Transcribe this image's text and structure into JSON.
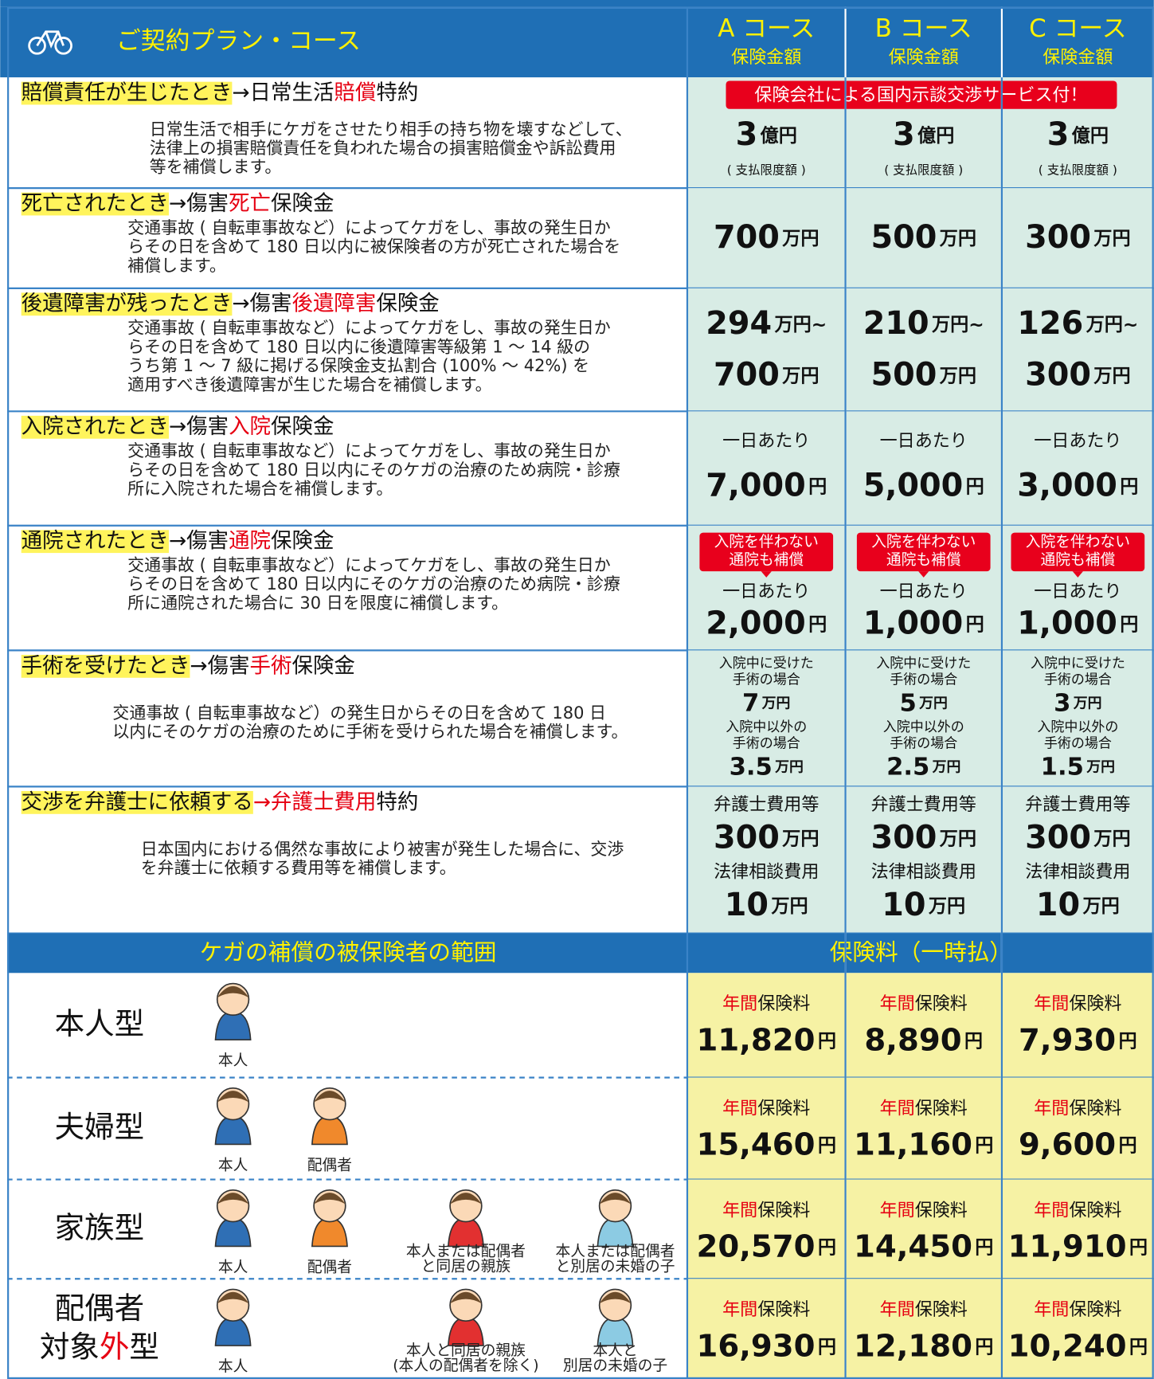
{
  "header": {
    "title": "ご契約プラン・コース",
    "courses": [
      {
        "name": "A コース",
        "sub": "保険金額"
      },
      {
        "name": "B コース",
        "sub": "保険金額"
      },
      {
        "name": "C コース",
        "sub": "保険金額"
      }
    ]
  },
  "benefits": [
    {
      "heading": [
        {
          "text": "賠償責任が生じたとき",
          "highlight": "#fff45c"
        },
        {
          "text": "→日常生活"
        },
        {
          "text": "賠償",
          "color": "#e60012"
        },
        {
          "text": "特約"
        }
      ],
      "description": [
        "日常生活で相手にケガをさせたり相手の持ち物を壊すなどして、",
        "法律上の損害賠償責任を負われた場合の損害賠償金や訴訟費用",
        "等を補償します。"
      ],
      "banner": "保険会社による国内示談交渉サービス付！",
      "cells": [
        [
          {
            "amount": "3",
            "unit": "億円"
          },
          {
            "note": "( 支払限度額 )"
          }
        ],
        [
          {
            "amount": "3",
            "unit": "億円"
          },
          {
            "note": "( 支払限度額 )"
          }
        ],
        [
          {
            "amount": "3",
            "unit": "億円"
          },
          {
            "note": "( 支払限度額 )"
          }
        ]
      ]
    },
    {
      "heading": [
        {
          "text": "死亡されたとき",
          "highlight": "#fff45c"
        },
        {
          "text": "→傷害"
        },
        {
          "text": "死亡",
          "color": "#e60012"
        },
        {
          "text": "保険金"
        }
      ],
      "description": [
        "交通事故 ( 自転車事故など）によってケガをし、事故の発生日か",
        "らその日を含めて 180 日以内に被保険者の方が死亡された場合を",
        "補償します。"
      ],
      "cells": [
        [
          {
            "amount": "700",
            "unit": "万円"
          }
        ],
        [
          {
            "amount": "500",
            "unit": "万円"
          }
        ],
        [
          {
            "amount": "300",
            "unit": "万円"
          }
        ]
      ]
    },
    {
      "heading": [
        {
          "text": "後遺障害が残ったとき",
          "highlight": "#fff45c"
        },
        {
          "text": "→傷害"
        },
        {
          "text": "後遺障害",
          "color": "#e60012"
        },
        {
          "text": "保険金"
        }
      ],
      "description": [
        "交通事故 ( 自転車事故など）によってケガをし、事故の発生日か",
        "らその日を含めて 180 日以内に後遺障害等級第 1 ～ 14 級の",
        "うち第 1 ～ 7 級に掲げる保険金支払割合 (100% ～ 42%) を",
        "適用すべき後遺障害が生じた場合を補償します。"
      ],
      "cells": [
        [
          {
            "amount": "294",
            "unit": "万円~"
          },
          {
            "amount": "700",
            "unit": "万円"
          }
        ],
        [
          {
            "amount": "210",
            "unit": "万円~"
          },
          {
            "amount": "500",
            "unit": "万円"
          }
        ],
        [
          {
            "amount": "126",
            "unit": "万円~"
          },
          {
            "amount": "300",
            "unit": "万円"
          }
        ]
      ]
    },
    {
      "heading": [
        {
          "text": "入院されたとき",
          "highlight": "#fff45c"
        },
        {
          "text": "→傷害"
        },
        {
          "text": "入院",
          "color": "#e60012"
        },
        {
          "text": "保険金"
        }
      ],
      "description": [
        "交通事故 ( 自転車事故など）によってケガをし、事故の発生日か",
        "らその日を含めて 180 日以内にそのケガの治療のため病院・診療",
        "所に入院された場合を補償します。"
      ],
      "cells": [
        [
          {
            "label": "一日あたり"
          },
          {
            "amount": "7,000",
            "unit": "円"
          }
        ],
        [
          {
            "label": "一日あたり"
          },
          {
            "amount": "5,000",
            "unit": "円"
          }
        ],
        [
          {
            "label": "一日あたり"
          },
          {
            "amount": "3,000",
            "unit": "円"
          }
        ]
      ]
    },
    {
      "heading": [
        {
          "text": "通院されたとき",
          "highlight": "#fff45c"
        },
        {
          "text": "→傷害"
        },
        {
          "text": "通院",
          "color": "#e60012"
        },
        {
          "text": "保険金"
        }
      ],
      "description": [
        "交通事故 ( 自転車事故など）によってケガをし、事故の発生日か",
        "らその日を含めて 180 日以内にそのケガの治療のため病院・診療",
        "所に通院された場合に 30 日を限度に補償します。"
      ],
      "cells": [
        [
          {
            "badge": [
              "入院を伴わない",
              "通院も補償"
            ]
          },
          {
            "label": "一日あたり"
          },
          {
            "amount": "2,000",
            "unit": "円"
          }
        ],
        [
          {
            "badge": [
              "入院を伴わない",
              "通院も補償"
            ]
          },
          {
            "label": "一日あたり"
          },
          {
            "amount": "1,000",
            "unit": "円"
          }
        ],
        [
          {
            "badge": [
              "入院を伴わない",
              "通院も補償"
            ]
          },
          {
            "label": "一日あたり"
          },
          {
            "amount": "1,000",
            "unit": "円"
          }
        ]
      ]
    },
    {
      "heading": [
        {
          "text": "手術を受けたとき",
          "highlight": "#fff45c"
        },
        {
          "text": "→傷害"
        },
        {
          "text": "手術",
          "color": "#e60012"
        },
        {
          "text": "保険金"
        }
      ],
      "description": [
        "交通事故 ( 自転車事故など）の発生日からその日を含めて 180 日",
        "以内にそのケガの治療のために手術を受けられた場合を補償します。"
      ],
      "cells": [
        [
          {
            "label": "入院中に受けた"
          },
          {
            "label": "手術の場合"
          },
          {
            "amount": "7",
            "unit": "万円"
          },
          {
            "label": "入院中以外の"
          },
          {
            "label": "手術の場合"
          },
          {
            "amount": "3.5",
            "unit": "万円"
          }
        ],
        [
          {
            "label": "入院中に受けた"
          },
          {
            "label": "手術の場合"
          },
          {
            "amount": "5",
            "unit": "万円"
          },
          {
            "label": "入院中以外の"
          },
          {
            "label": "手術の場合"
          },
          {
            "amount": "2.5",
            "unit": "万円"
          }
        ],
        [
          {
            "label": "入院中に受けた"
          },
          {
            "label": "手術の場合"
          },
          {
            "amount": "3",
            "unit": "万円"
          },
          {
            "label": "入院中以外の"
          },
          {
            "label": "手術の場合"
          },
          {
            "amount": "1.5",
            "unit": "万円"
          }
        ]
      ]
    },
    {
      "heading": [
        {
          "text": "交渉を弁護士に依頼する",
          "highlight": "#fff45c"
        },
        {
          "text": "→弁護士費用",
          "color": "#e60012"
        },
        {
          "text": "特約"
        }
      ],
      "description": [
        "日本国内における偶然な事故により被害が発生した場合に、交渉",
        "を弁護士に依頼する費用等を補償します。"
      ],
      "cells": [
        [
          {
            "label": "弁護士費用等"
          },
          {
            "amount": "300",
            "unit": "万円"
          },
          {
            "label": "法律相談費用"
          },
          {
            "amount": "10",
            "unit": "万円"
          }
        ],
        [
          {
            "label": "弁護士費用等"
          },
          {
            "amount": "300",
            "unit": "万円"
          },
          {
            "label": "法律相談費用"
          },
          {
            "amount": "10",
            "unit": "万円"
          }
        ],
        [
          {
            "label": "弁護士費用等"
          },
          {
            "amount": "300",
            "unit": "万円"
          },
          {
            "label": "法律相談費用"
          },
          {
            "amount": "10",
            "unit": "万円"
          }
        ]
      ]
    }
  ],
  "coverage": {
    "title": "ケガの補償の被保険者の範囲",
    "premium_title": "保険料（一時払）",
    "plans": [
      {
        "name": [
          [
            {
              "text": "本人型"
            }
          ]
        ],
        "people": [
          [
            "本人"
          ],
          null,
          null,
          null
        ],
        "premiums": [
          {
            "label": [
              {
                "text": "年間",
                "color": "#e60012"
              },
              {
                "text": "保険料"
              }
            ],
            "amount": "11,820",
            "unit": "円"
          },
          {
            "label": [
              {
                "text": "年間",
                "color": "#e60012"
              },
              {
                "text": "保険料"
              }
            ],
            "amount": "8,890",
            "unit": "円"
          },
          {
            "label": [
              {
                "text": "年間",
                "color": "#e60012"
              },
              {
                "text": "保険料"
              }
            ],
            "amount": "7,930",
            "unit": "円"
          }
        ]
      },
      {
        "name": [
          [
            {
              "text": "夫婦型"
            }
          ]
        ],
        "people": [
          [
            "本人"
          ],
          [
            "配偶者"
          ],
          null,
          null
        ],
        "premiums": [
          {
            "label": [
              {
                "text": "年間",
                "color": "#e60012"
              },
              {
                "text": "保険料"
              }
            ],
            "amount": "15,460",
            "unit": "円"
          },
          {
            "label": [
              {
                "text": "年間",
                "color": "#e60012"
              },
              {
                "text": "保険料"
              }
            ],
            "amount": "11,160",
            "unit": "円"
          },
          {
            "label": [
              {
                "text": "年間",
                "color": "#e60012"
              },
              {
                "text": "保険料"
              }
            ],
            "amount": "9,600",
            "unit": "円"
          }
        ]
      },
      {
        "name": [
          [
            {
              "text": "家族型"
            }
          ]
        ],
        "people": [
          [
            "本人"
          ],
          [
            "配偶者"
          ],
          [
            "本人または配偶者",
            "と同居の親族"
          ],
          [
            "本人または配偶者",
            "と別居の未婚の子"
          ]
        ],
        "premiums": [
          {
            "label": [
              {
                "text": "年間",
                "color": "#e60012"
              },
              {
                "text": "保険料"
              }
            ],
            "amount": "20,570",
            "unit": "円"
          },
          {
            "label": [
              {
                "text": "年間",
                "color": "#e60012"
              },
              {
                "text": "保険料"
              }
            ],
            "amount": "14,450",
            "unit": "円"
          },
          {
            "label": [
              {
                "text": "年間",
                "color": "#e60012"
              },
              {
                "text": "保険料"
              }
            ],
            "amount": "11,910",
            "unit": "円"
          }
        ]
      },
      {
        "name": [
          [
            {
              "text": "配偶者"
            }
          ],
          [
            {
              "text": "対象"
            },
            {
              "text": "外",
              "color": "#e60012"
            },
            {
              "text": "型"
            }
          ]
        ],
        "people": [
          [
            "本人"
          ],
          null,
          [
            "本人と同居の親族",
            "(本人の配偶者を除く)"
          ],
          [
            "本人と",
            "別居の未婚の子"
          ]
        ],
        "premiums": [
          {
            "label": [
              {
                "text": "年間",
                "color": "#e60012"
              },
              {
                "text": "保険料"
              }
            ],
            "amount": "16,930",
            "unit": "円"
          },
          {
            "label": [
              {
                "text": "年間",
                "color": "#e60012"
              },
              {
                "text": "保険料"
              }
            ],
            "amount": "12,180",
            "unit": "円"
          },
          {
            "label": [
              {
                "text": "年間",
                "color": "#e60012"
              },
              {
                "text": "保険料"
              }
            ],
            "amount": "10,240",
            "unit": "円"
          }
        ]
      }
    ]
  }
}
